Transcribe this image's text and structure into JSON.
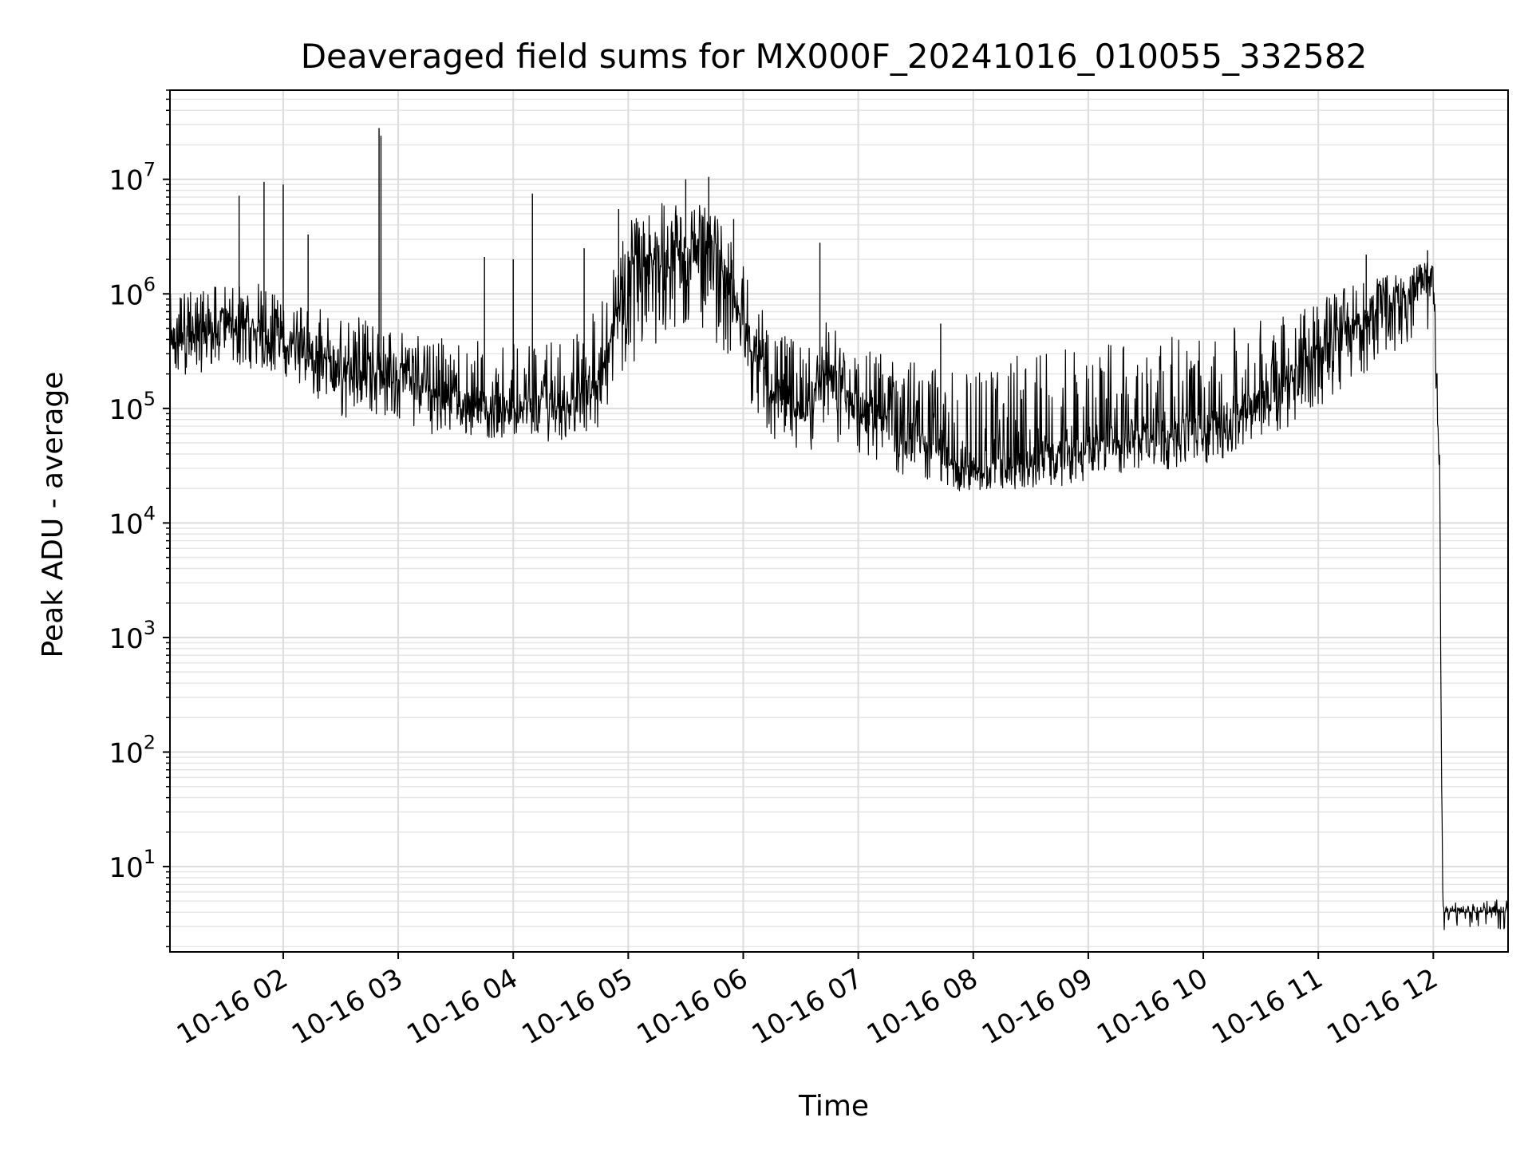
{
  "chart_data": {
    "type": "line",
    "title": "Deaveraged field sums for MX000F_20241016_010055_332582",
    "xlabel": "Time",
    "ylabel": "Peak ADU - average",
    "yscale": "log",
    "ylim": [
      1.8,
      60000000
    ],
    "xlim": [
      "2024-10-16 01:00:55",
      "2024-10-16 12:39:00"
    ],
    "grid": true,
    "line_color": "#000000",
    "x_ticks": [
      "10-16 02",
      "10-16 03",
      "10-16 04",
      "10-16 05",
      "10-16 06",
      "10-16 07",
      "10-16 08",
      "10-16 09",
      "10-16 10",
      "10-16 11",
      "10-16 12"
    ],
    "x_tick_times": [
      "2024-10-16 02:00",
      "2024-10-16 03:00",
      "2024-10-16 04:00",
      "2024-10-16 05:00",
      "2024-10-16 06:00",
      "2024-10-16 07:00",
      "2024-10-16 08:00",
      "2024-10-16 09:00",
      "2024-10-16 10:00",
      "2024-10-16 11:00",
      "2024-10-16 12:00"
    ],
    "y_ticks": [
      {
        "value": 10,
        "base": "10",
        "exp": "1"
      },
      {
        "value": 100,
        "base": "10",
        "exp": "2"
      },
      {
        "value": 1000,
        "base": "10",
        "exp": "3"
      },
      {
        "value": 10000,
        "base": "10",
        "exp": "4"
      },
      {
        "value": 100000,
        "base": "10",
        "exp": "5"
      },
      {
        "value": 1000000,
        "base": "10",
        "exp": "6"
      },
      {
        "value": 10000000,
        "base": "10",
        "exp": "7"
      }
    ],
    "series": [
      {
        "x": [
          "2024-10-16 01:00:55",
          "2024-10-16 01:15",
          "2024-10-16 01:30",
          "2024-10-16 01:45",
          "2024-10-16 02:00",
          "2024-10-16 02:15",
          "2024-10-16 02:30",
          "2024-10-16 02:45",
          "2024-10-16 03:00",
          "2024-10-16 03:15",
          "2024-10-16 03:30",
          "2024-10-16 03:45",
          "2024-10-16 04:00",
          "2024-10-16 04:15",
          "2024-10-16 04:30",
          "2024-10-16 04:45",
          "2024-10-16 05:00",
          "2024-10-16 05:15",
          "2024-10-16 05:30",
          "2024-10-16 05:45",
          "2024-10-16 06:00",
          "2024-10-16 06:15",
          "2024-10-16 06:30",
          "2024-10-16 06:45",
          "2024-10-16 07:00",
          "2024-10-16 07:15",
          "2024-10-16 07:30",
          "2024-10-16 07:45",
          "2024-10-16 08:00",
          "2024-10-16 08:15",
          "2024-10-16 08:30",
          "2024-10-16 08:45",
          "2024-10-16 09:00",
          "2024-10-16 09:15",
          "2024-10-16 09:30",
          "2024-10-16 09:45",
          "2024-10-16 10:00",
          "2024-10-16 10:15",
          "2024-10-16 10:30",
          "2024-10-16 10:45",
          "2024-10-16 11:00",
          "2024-10-16 11:15",
          "2024-10-16 11:30",
          "2024-10-16 11:45",
          "2024-10-16 11:52",
          "2024-10-16 12:00",
          "2024-10-16 12:03",
          "2024-10-16 12:05",
          "2024-10-16 12:39"
        ],
        "y": [
          400000,
          450000,
          550000,
          500000,
          400000,
          300000,
          200000,
          250000,
          200000,
          150000,
          120000,
          110000,
          100000,
          110000,
          120000,
          180000,
          1500000,
          2000000,
          2500000,
          2500000,
          600000,
          150000,
          90000,
          200000,
          100000,
          80000,
          60000,
          40000,
          30000,
          30000,
          35000,
          40000,
          45000,
          55000,
          60000,
          65000,
          70000,
          90000,
          130000,
          200000,
          300000,
          500000,
          800000,
          1000000,
          1200000,
          1500000,
          30000,
          4,
          4
        ],
        "lo": [
          150000,
          200000,
          250000,
          220000,
          200000,
          120000,
          80000,
          90000,
          80000,
          60000,
          60000,
          55000,
          55000,
          50000,
          55000,
          70000,
          200000,
          300000,
          500000,
          400000,
          150000,
          50000,
          35000,
          50000,
          30000,
          28000,
          23000,
          20000,
          18000,
          19000,
          20000,
          21000,
          23000,
          26000,
          28000,
          30000,
          32000,
          38000,
          55000,
          70000,
          100000,
          150000,
          250000,
          350000,
          450000,
          500000,
          30000,
          4,
          4
        ],
        "hi": [
          1000000,
          1100000,
          1200000,
          1300000,
          900000,
          800000,
          600000,
          700000,
          500000,
          450000,
          400000,
          400000,
          380000,
          400000,
          450000,
          800000,
          4500000,
          6000000,
          7000000,
          5000000,
          2000000,
          450000,
          400000,
          600000,
          350000,
          300000,
          250000,
          220000,
          250000,
          280000,
          300000,
          320000,
          350000,
          380000,
          400000,
          430000,
          450000,
          500000,
          600000,
          700000,
          900000,
          1200000,
          1400000,
          1500000,
          1800000,
          2000000,
          200000,
          4.5,
          4.5
        ]
      }
    ],
    "spikes": [
      {
        "x": "2024-10-16 01:37",
        "y": 7200000
      },
      {
        "x": "2024-10-16 01:50",
        "y": 9500000
      },
      {
        "x": "2024-10-16 02:00",
        "y": 9000000
      },
      {
        "x": "2024-10-16 02:13",
        "y": 3300000
      },
      {
        "x": "2024-10-16 02:50",
        "y": 28000000
      },
      {
        "x": "2024-10-16 02:51",
        "y": 24000000
      },
      {
        "x": "2024-10-16 03:45",
        "y": 2100000
      },
      {
        "x": "2024-10-16 04:00",
        "y": 2000000
      },
      {
        "x": "2024-10-16 04:10",
        "y": 7500000
      },
      {
        "x": "2024-10-16 04:37",
        "y": 2500000
      },
      {
        "x": "2024-10-16 04:55",
        "y": 5500000
      },
      {
        "x": "2024-10-16 05:30",
        "y": 10000000
      },
      {
        "x": "2024-10-16 05:42",
        "y": 10500000
      },
      {
        "x": "2024-10-16 05:55",
        "y": 4500000
      },
      {
        "x": "2024-10-16 06:40",
        "y": 2800000
      },
      {
        "x": "2024-10-16 07:43",
        "y": 550000
      },
      {
        "x": "2024-10-16 11:25",
        "y": 2200000
      },
      {
        "x": "2024-10-16 11:57",
        "y": 2400000
      }
    ]
  }
}
